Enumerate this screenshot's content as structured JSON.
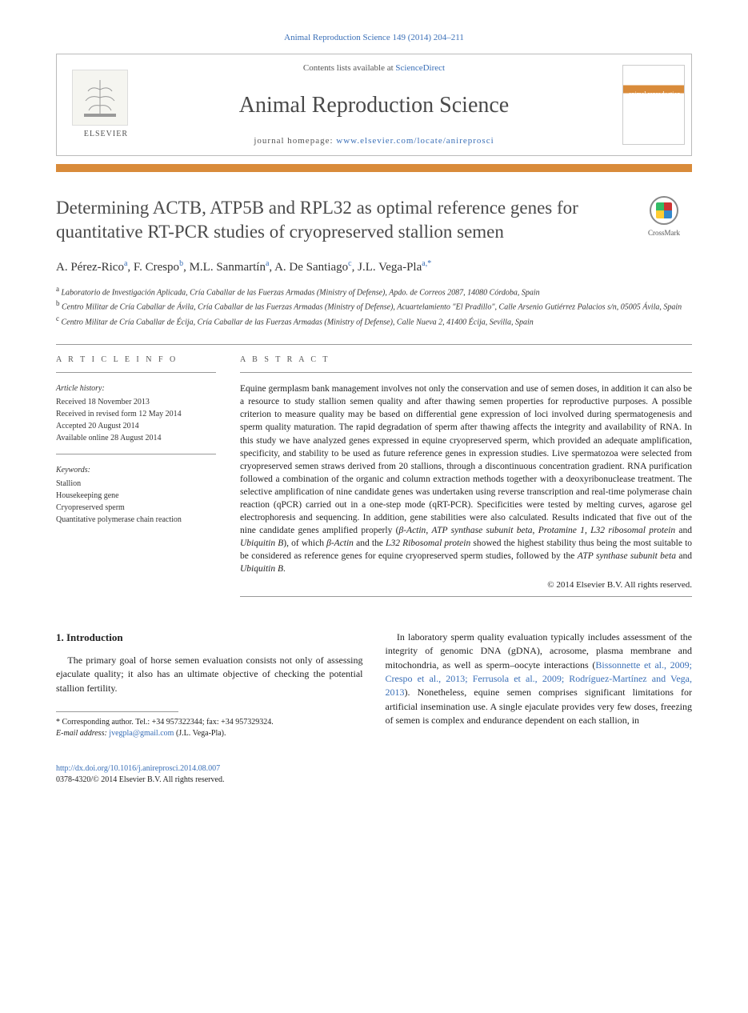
{
  "citation": "Animal Reproduction Science 149 (2014) 204–211",
  "header": {
    "contents_prefix": "Contents lists available at ",
    "contents_link": "ScienceDirect",
    "journal": "Animal Reproduction Science",
    "homepage_prefix": "journal homepage: ",
    "homepage_url": "www.elsevier.com/locate/anireprosci",
    "publisher": "ELSEVIER"
  },
  "title": "Determining ACTB, ATP5B and RPL32 as optimal reference genes for quantitative RT-PCR studies of cryopreserved stallion semen",
  "crossmark_label": "CrossMark",
  "authors_html": "A. Pérez-Rico<sup>a</sup>, F. Crespo<sup>b</sup>, M.L. Sanmartín<sup>a</sup>, A. De Santiago<sup>c</sup>, J.L. Vega-Pla<sup>a,*</sup>",
  "affiliations": [
    "a Laboratorio de Investigación Aplicada, Cría Caballar de las Fuerzas Armadas (Ministry of Defense), Apdo. de Correos 2087, 14080 Córdoba, Spain",
    "b Centro Militar de Cría Caballar de Ávila, Cría Caballar de las Fuerzas Armadas (Ministry of Defense), Acuartelamiento \"El Pradillo\", Calle Arsenio Gutiérrez Palacios s/n, 05005 Ávila, Spain",
    "c Centro Militar de Cría Caballar de Écija, Cría Caballar de las Fuerzas Armadas (Ministry of Defense), Calle Nueva 2, 41400 Écija, Sevilla, Spain"
  ],
  "info": {
    "heading": "A R T I C L E   I N F O",
    "history_heading": "Article history:",
    "history": [
      "Received 18 November 2013",
      "Received in revised form 12 May 2014",
      "Accepted 20 August 2014",
      "Available online 28 August 2014"
    ],
    "keywords_heading": "Keywords:",
    "keywords": [
      "Stallion",
      "Housekeeping gene",
      "Cryopreserved sperm",
      "Quantitative polymerase chain reaction"
    ]
  },
  "abstract": {
    "heading": "A B S T R A C T",
    "text": "Equine germplasm bank management involves not only the conservation and use of semen doses, in addition it can also be a resource to study stallion semen quality and after thawing semen properties for reproductive purposes. A possible criterion to measure quality may be based on differential gene expression of loci involved during spermatogenesis and sperm quality maturation. The rapid degradation of sperm after thawing affects the integrity and availability of RNA. In this study we have analyzed genes expressed in equine cryopreserved sperm, which provided an adequate amplification, specificity, and stability to be used as future reference genes in expression studies. Live spermatozoa were selected from cryopreserved semen straws derived from 20 stallions, through a discontinuous concentration gradient. RNA purification followed a combination of the organic and column extraction methods together with a deoxyribonuclease treatment. The selective amplification of nine candidate genes was undertaken using reverse transcription and real-time polymerase chain reaction (qPCR) carried out in a one-step mode (qRT-PCR). Specificities were tested by melting curves, agarose gel electrophoresis and sequencing. In addition, gene stabilities were also calculated. Results indicated that five out of the nine candidate genes amplified properly (β-Actin, ATP synthase subunit beta, Protamine 1, L32 ribosomal protein and Ubiquitin B), of which β-Actin and the L32 Ribosomal protein showed the highest stability thus being the most suitable to be considered as reference genes for equine cryopreserved sperm studies, followed by the ATP synthase subunit beta and Ubiquitin B.",
    "copyright": "© 2014 Elsevier B.V. All rights reserved."
  },
  "body": {
    "section_heading": "1.  Introduction",
    "col1_p1": "The primary goal of horse semen evaluation consists not only of assessing ejaculate quality; it also has an ultimate objective of checking the potential stallion fertility.",
    "col2_p1_pre": "In laboratory sperm quality evaluation typically includes assessment of the integrity of genomic DNA (gDNA), acrosome, plasma membrane and mitochondria, as well as sperm–oocyte interactions (",
    "col2_refs": "Bissonnette et al., 2009; Crespo et al., 2013; Ferrusola et al., 2009; Rodríguez-Martínez and Vega, 2013",
    "col2_p1_post": "). Nonetheless, equine semen comprises significant limitations for artificial insemination use. A single ejaculate provides very few doses, freezing of semen is complex and endurance dependent on each stallion, in"
  },
  "footnote": {
    "corr": "* Corresponding author. Tel.: +34 957322344; fax: +34 957329324.",
    "email_label": "E-mail address: ",
    "email": "jvegpla@gmail.com",
    "email_suffix": " (J.L. Vega-Pla)."
  },
  "bottom": {
    "doi": "http://dx.doi.org/10.1016/j.anireprosci.2014.08.007",
    "issn_line": "0378-4320/© 2014 Elsevier B.V. All rights reserved."
  },
  "colors": {
    "link": "#3a6fb7",
    "accent": "#d98b3a",
    "text": "#222222"
  }
}
